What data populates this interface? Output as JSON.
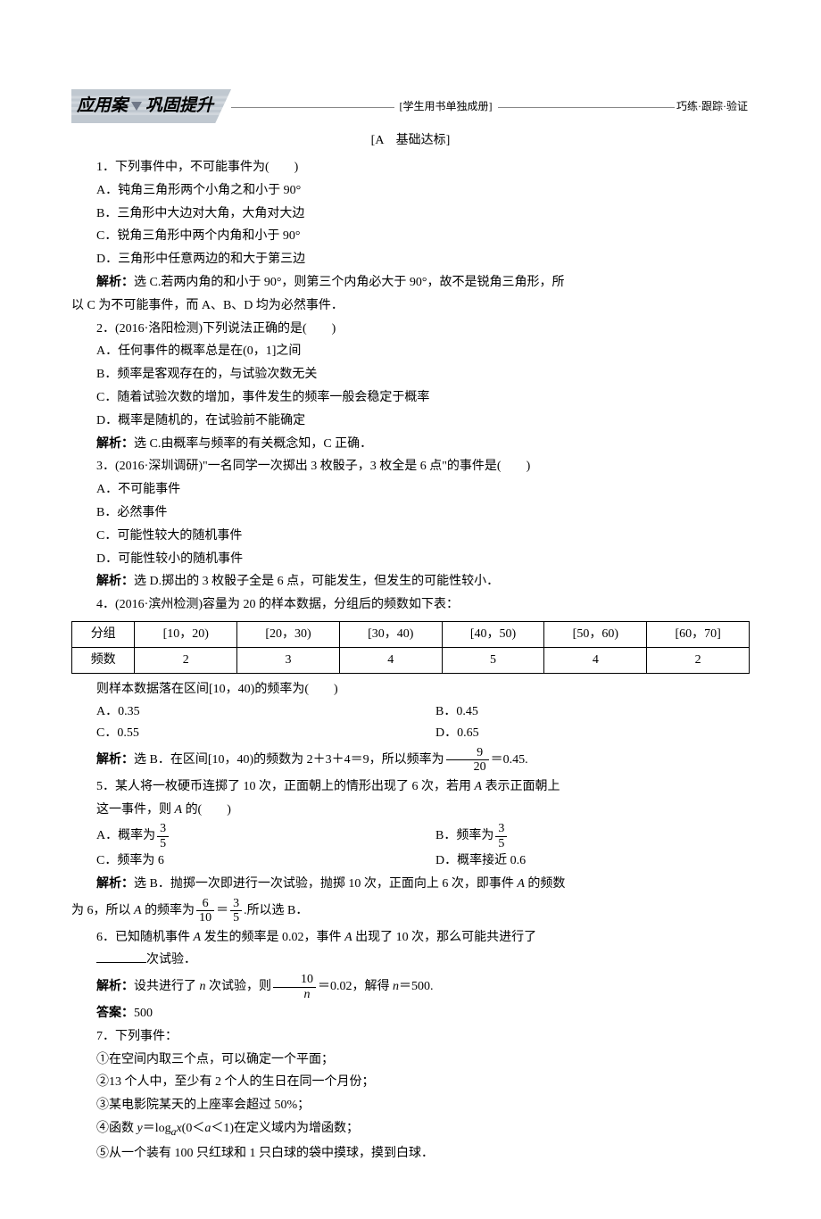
{
  "header": {
    "title_left": "应用案",
    "title_right": "巩固提升",
    "mid_note": "[学生用书单独成册]",
    "right_note": "巧练·跟踪·验证"
  },
  "section_label": "[A　基础达标]",
  "q1": {
    "stem": "1．下列事件中，不可能事件为(　　)",
    "A": "A．钝角三角形两个小角之和小于 90°",
    "B": "B．三角形中大边对大角，大角对大边",
    "C": "C．锐角三角形中两个内角和小于 90°",
    "D": "D．三角形中任意两边的和大于第三边",
    "sol_lead": "解析：",
    "sol1": "选 C.若两内角的和小于 90°，则第三个内角必大于 90°，故不是锐角三角形，所",
    "sol2": "以 C 为不可能事件，而 A、B、D 均为必然事件．"
  },
  "q2": {
    "stem": "2．(2016·洛阳检测)下列说法正确的是(　　)",
    "A": "A．任何事件的概率总是在(0，1]之间",
    "B": "B．频率是客观存在的，与试验次数无关",
    "C": "C．随着试验次数的增加，事件发生的频率一般会稳定于概率",
    "D": "D．概率是随机的，在试验前不能确定",
    "sol_lead": "解析：",
    "sol": "选 C.由概率与频率的有关概念知，C 正确．"
  },
  "q3": {
    "stem": "3．(2016·深圳调研)\"一名同学一次掷出 3 枚骰子，3 枚全是 6 点\"的事件是(　　)",
    "A": "A．不可能事件",
    "B": "B．必然事件",
    "C": "C．可能性较大的随机事件",
    "D": "D．可能性较小的随机事件",
    "sol_lead": "解析：",
    "sol": "选 D.掷出的 3 枚骰子全是 6 点，可能发生，但发生的可能性较小．"
  },
  "q4": {
    "stem": "4．(2016·滨州检测)容量为 20 的样本数据，分组后的频数如下表：",
    "table": {
      "columns": [
        "分组",
        "[10，20)",
        "[20，30)",
        "[30，40)",
        "[40，50)",
        "[50，60)",
        "[60，70]"
      ],
      "row_label": "频数",
      "rows": [
        [
          "2",
          "3",
          "4",
          "5",
          "4",
          "2"
        ]
      ]
    },
    "follow": "则样本数据落在区间[10，40)的频率为(　　)",
    "A": "A．0.35",
    "B": "B．0.45",
    "C": "C．0.55",
    "D": "D．0.65",
    "sol_lead": "解析：",
    "sol_pre": "选 B．在区间[10，40)的频数为 2＋3＋4＝9，所以频率为",
    "sol_frac_num": "9",
    "sol_frac_den": "20",
    "sol_post": "＝0.45."
  },
  "q5": {
    "stem1": "5．某人将一枚硬币连掷了 10 次，正面朝上的情形出现了 6 次，若用 ",
    "stemA": "A",
    "stem2": " 表示正面朝上",
    "stem3": "这一事件，则 ",
    "stem4": " 的(　　)",
    "A_text": "A．概率为",
    "A_num": "3",
    "A_den": "5",
    "B_text": "B．频率为",
    "B_num": "3",
    "B_den": "5",
    "C": "C．频率为 6",
    "D": "D．概率接近 0.6",
    "sol_lead": "解析：",
    "sol1": "选 B．抛掷一次即进行一次试验，抛掷 10 次，正面向上 6 次，即事件 ",
    "sol1_end": " 的频数",
    "sol2a": "为 6，所以 ",
    "sol2b": " 的频率为",
    "f1_num": "6",
    "f1_den": "10",
    "eq": "＝",
    "f2_num": "3",
    "f2_den": "5",
    "sol2c": ".所以选 B．"
  },
  "q6": {
    "stem1": "6．已知随机事件 ",
    "stemA": "A",
    "stem2": " 发生的频率是 0.02，事件 ",
    "stem3": " 出现了 10 次，那么可能共进行了",
    "blank_suffix": "次试验．",
    "sol_lead": "解析：",
    "sol_pre": "设共进行了 ",
    "sol_n": "n",
    "sol_mid": " 次试验，则",
    "frac_num": "10",
    "frac_den_var": "n",
    "sol_post": "＝0.02，解得 ",
    "sol_post2": "＝500.",
    "ans_lead": "答案：",
    "ans": "500"
  },
  "q7": {
    "stem": "7．下列事件：",
    "i1": "①在空间内取三个点，可以确定一个平面；",
    "i2": "②13 个人中，至少有 2 个人的生日在同一个月份；",
    "i3": "③某电影院某天的上座率会超过 50%；",
    "i4a": "④函数 ",
    "i4y": "y",
    "i4eq": "＝log",
    "i4a_sub": "a",
    "i4x": "x",
    "i4cond": "(0＜",
    "i4cond2": "＜1)在定义域内为增函数；",
    "i5": "⑤从一个装有 100 只红球和 1 只白球的袋中摸球，摸到白球．"
  }
}
